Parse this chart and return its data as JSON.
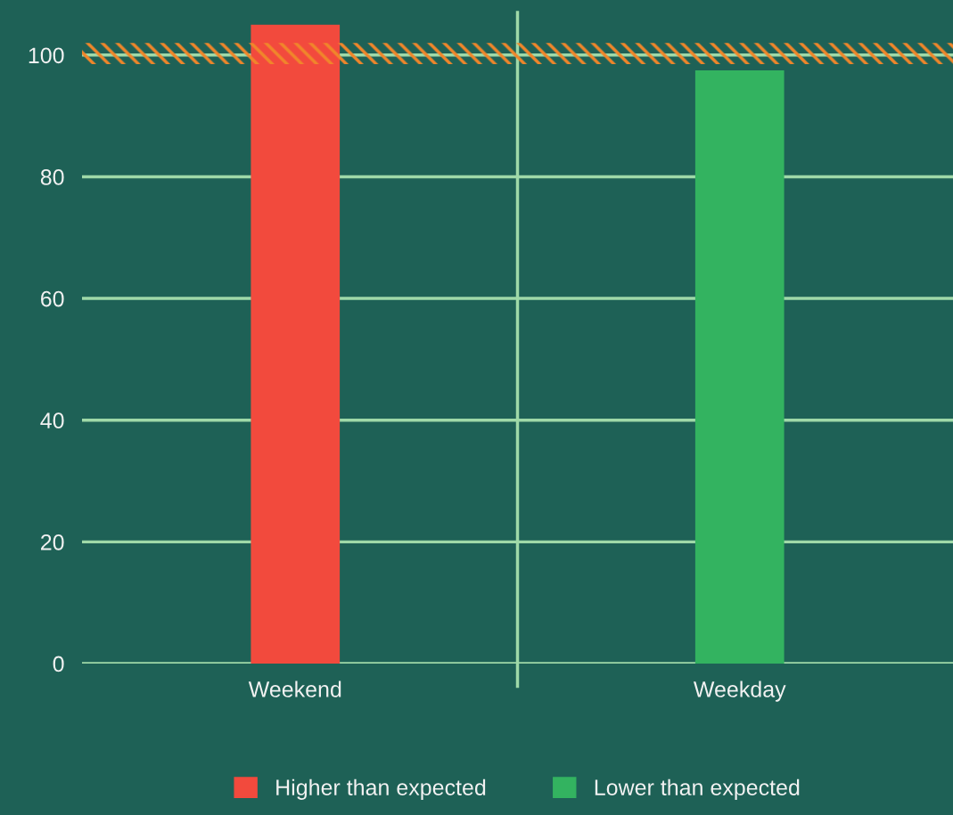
{
  "chart_data": {
    "type": "bar",
    "categories": [
      "Weekend",
      "Weekday"
    ],
    "series": [
      {
        "name": "Higher than expected",
        "color": "#f24a3d",
        "values": [
          105,
          null
        ]
      },
      {
        "name": "Lower than expected",
        "color": "#33b360",
        "values": [
          null,
          97.5
        ]
      }
    ],
    "ylim": [
      0,
      107
    ],
    "yticks": [
      0,
      20,
      40,
      60,
      80,
      100
    ],
    "grid": true,
    "legend": "bottom",
    "bands": [
      {
        "axis": "y",
        "from": 98.5,
        "to": 102,
        "color": "#f0862a"
      }
    ]
  }
}
